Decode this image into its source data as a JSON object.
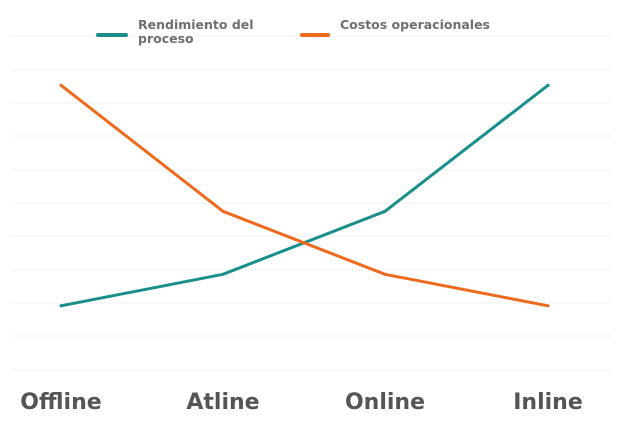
{
  "chart_data": {
    "type": "line",
    "title": "",
    "xlabel": "",
    "ylabel": "",
    "categories": [
      "Offline",
      "Atline",
      "Online",
      "Inline"
    ],
    "ylim": [
      0,
      10
    ],
    "grid": true,
    "legend": "top",
    "series": [
      {
        "name": "Rendimiento del proceso",
        "name_lines": [
          "Rendimiento del",
          "proceso"
        ],
        "color": "#1a8f8a",
        "values": [
          1.5,
          2.5,
          4.5,
          8.5
        ]
      },
      {
        "name": "Costos operacionales",
        "name_lines": [
          "Costos operacionales"
        ],
        "color": "#ee6a1f",
        "values": [
          8.5,
          4.5,
          2.5,
          1.5
        ]
      }
    ]
  }
}
